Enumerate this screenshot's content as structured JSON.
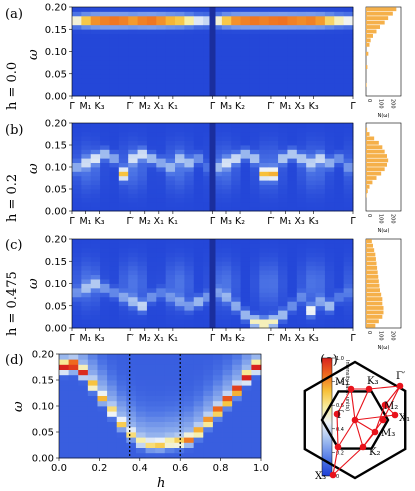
{
  "panel_labels": [
    "(a)",
    "(b)",
    "(c)",
    "(d)",
    "(e)"
  ],
  "h_labels": [
    "h = 0.0",
    "h = 0.2",
    "h = 0.475"
  ],
  "omega_label": "ω",
  "h_axis_label": "h",
  "dos_label": "N(ω)",
  "colorbar_label": "Intensity (arb. units)",
  "colors": {
    "colormap": [
      "#1d3fd6",
      "#4f77e6",
      "#9fbcef",
      "#eef3f8",
      "#f8eea0",
      "#f7c13a",
      "#ee6a1f",
      "#d8221d"
    ],
    "histogram": "#f5b04a",
    "bz_lines": "#e8121b",
    "bz_points": "#e8121b"
  },
  "path_labels": [
    "Γ",
    "M₁",
    "K₃",
    "Γ′",
    "M₂",
    "X₁",
    "K₁",
    "Γ",
    "M₃",
    "K₂",
    "Γ′",
    "M₁",
    "X₃",
    "K₃",
    "Γ"
  ],
  "dos_ticks": [
    "0",
    "100",
    "200"
  ],
  "bz_labels": [
    "M₁",
    "K₃",
    "Γ′",
    "M₂",
    "X₁",
    "Γ",
    "M₃",
    "K₂",
    "X₃"
  ],
  "chart_data": [
    {
      "type": "heatmap",
      "panel": "(a)",
      "h": 0.0,
      "x_ticklabels": [
        "Γ",
        "M₁",
        "K₃",
        "Γ′",
        "M₂",
        "X₁",
        "K₁",
        "Γ",
        "M₃",
        "K₂",
        "Γ′",
        "M₁",
        "X₃",
        "K₃",
        "Γ"
      ],
      "ylabel": "ω",
      "ylim": [
        0.0,
        0.2
      ],
      "yticks": [
        "0.00",
        "0.05",
        "0.10",
        "0.15",
        "0.20"
      ],
      "band_omega": [
        0.17,
        0.17,
        0.17,
        0.17,
        0.17,
        0.17,
        0.17,
        0.17,
        0.17,
        0.17,
        0.17,
        0.17,
        0.17,
        0.17,
        0.17,
        0.17,
        0.17,
        0.17,
        0.17,
        0.17,
        0.17,
        0.17,
        0.17,
        0.17,
        0.17,
        0.17,
        0.17,
        0.17,
        0.17,
        0.17
      ],
      "band_intensity": [
        0.55,
        0.8,
        0.92,
        0.95,
        0.97,
        0.95,
        0.9,
        0.95,
        0.97,
        0.92,
        0.85,
        0.8,
        0.65,
        0.45,
        0.4,
        0.55,
        0.8,
        0.92,
        0.95,
        0.97,
        0.95,
        0.97,
        0.98,
        0.95,
        0.93,
        0.95,
        0.9,
        0.75,
        0.6,
        0.5
      ]
    },
    {
      "type": "heatmap",
      "panel": "(b)",
      "h": 0.2,
      "x_ticklabels": [
        "Γ",
        "M₁",
        "K₃",
        "Γ′",
        "M₂",
        "X₁",
        "K₁",
        "Γ",
        "M₃",
        "K₂",
        "Γ′",
        "M₁",
        "X₃",
        "K₃",
        "Γ"
      ],
      "ylabel": "ω",
      "ylim": [
        0.0,
        0.2
      ],
      "yticks": [
        "0.00",
        "0.05",
        "0.10",
        "0.15",
        "0.20"
      ],
      "band_omega": [
        0.1,
        0.11,
        0.12,
        0.13,
        0.12,
        0.085,
        0.12,
        0.13,
        0.12,
        0.11,
        0.1,
        0.12,
        0.11,
        0.12,
        0.1,
        0.1,
        0.11,
        0.12,
        0.13,
        0.12,
        0.085,
        0.085,
        0.12,
        0.13,
        0.12,
        0.11,
        0.12,
        0.11,
        0.12,
        0.1
      ],
      "band_intensity": [
        0.2,
        0.28,
        0.35,
        0.3,
        0.25,
        0.62,
        0.3,
        0.35,
        0.3,
        0.25,
        0.2,
        0.22,
        0.25,
        0.2,
        0.1,
        0.2,
        0.3,
        0.35,
        0.3,
        0.3,
        0.6,
        0.62,
        0.3,
        0.35,
        0.3,
        0.25,
        0.3,
        0.25,
        0.2,
        0.15
      ]
    },
    {
      "type": "heatmap",
      "panel": "(c)",
      "h": 0.475,
      "x_ticklabels": [
        "Γ",
        "M₁",
        "K₃",
        "Γ′",
        "M₂",
        "X₁",
        "K₁",
        "Γ",
        "M₃",
        "K₂",
        "Γ′",
        "M₁",
        "X₃",
        "K₃",
        "Γ"
      ],
      "ylabel": "ω",
      "ylim": [
        0.0,
        0.2
      ],
      "yticks": [
        "0.00",
        "0.05",
        "0.10",
        "0.15",
        "0.20"
      ],
      "band_omega": [
        0.08,
        0.09,
        0.1,
        0.09,
        0.08,
        0.07,
        0.06,
        0.05,
        0.07,
        0.08,
        0.07,
        0.06,
        0.05,
        0.06,
        0.07,
        0.08,
        0.07,
        0.05,
        0.03,
        0.015,
        0.01,
        0.015,
        0.03,
        0.05,
        0.07,
        0.04,
        0.06,
        0.05,
        0.07,
        0.08
      ],
      "band_intensity": [
        0.15,
        0.2,
        0.25,
        0.2,
        0.18,
        0.2,
        0.25,
        0.35,
        0.2,
        0.15,
        0.15,
        0.18,
        0.2,
        0.3,
        0.2,
        0.15,
        0.2,
        0.25,
        0.3,
        0.5,
        0.6,
        0.5,
        0.3,
        0.2,
        0.15,
        0.45,
        0.2,
        0.3,
        0.15,
        0.1
      ]
    },
    {
      "type": "heatmap",
      "panel": "(d)",
      "xlabel": "h",
      "ylabel": "ω",
      "xlim": [
        0.0,
        1.0
      ],
      "ylim": [
        0.0,
        0.2
      ],
      "xticks": [
        "0.0",
        "0.2",
        "0.4",
        "0.6",
        "0.8",
        "1.0"
      ],
      "yticks": [
        "0.00",
        "0.05",
        "0.10",
        "0.15",
        "0.20"
      ],
      "colorbar_ticks": [
        "0",
        "0.2",
        "0.4",
        "0.6",
        "0.8",
        "1.0"
      ],
      "colorbar_label": "Intensity (arb. units)",
      "vertical_dashed_lines_h": [
        0.35,
        0.6
      ],
      "h_columns": [
        0.0,
        0.05,
        0.1,
        0.15,
        0.2,
        0.25,
        0.3,
        0.35,
        0.4,
        0.45,
        0.5,
        0.55,
        0.6,
        0.65,
        0.7,
        0.75,
        0.8,
        0.85,
        0.9,
        0.95,
        1.0
      ],
      "peak_omega": [
        0.175,
        0.178,
        0.165,
        0.14,
        0.115,
        0.09,
        0.065,
        0.045,
        0.03,
        0.025,
        0.025,
        0.028,
        0.03,
        0.035,
        0.05,
        0.07,
        0.09,
        0.11,
        0.13,
        0.155,
        0.175
      ],
      "peak_intensity": [
        0.85,
        0.95,
        0.7,
        0.55,
        0.45,
        0.45,
        0.4,
        0.35,
        0.35,
        0.35,
        0.4,
        0.45,
        0.5,
        0.55,
        0.6,
        0.65,
        0.75,
        0.8,
        0.85,
        0.85,
        0.8
      ]
    },
    {
      "type": "bar",
      "panel": "(a)",
      "orientation": "horizontal",
      "xlabel": "N(ω)",
      "xlim": [
        0,
        300
      ],
      "ylim": [
        0.0,
        0.2
      ],
      "bins_omega_mid": [
        0.005,
        0.015,
        0.025,
        0.035,
        0.045,
        0.055,
        0.065,
        0.075,
        0.085,
        0.095,
        0.105,
        0.115,
        0.125,
        0.135,
        0.145,
        0.155,
        0.165,
        0.175,
        0.185,
        0.195
      ],
      "values": [
        0,
        0,
        5,
        0,
        0,
        0,
        12,
        0,
        0,
        20,
        0,
        30,
        40,
        60,
        90,
        120,
        160,
        190,
        230,
        260
      ]
    },
    {
      "type": "bar",
      "panel": "(b)",
      "orientation": "horizontal",
      "xlabel": "N(ω)",
      "xlim": [
        0,
        300
      ],
      "ylim": [
        0.0,
        0.2
      ],
      "bins_omega_mid": [
        0.005,
        0.015,
        0.025,
        0.035,
        0.045,
        0.055,
        0.065,
        0.075,
        0.085,
        0.095,
        0.105,
        0.115,
        0.125,
        0.135,
        0.145,
        0.155,
        0.165,
        0.175,
        0.185,
        0.195
      ],
      "values": [
        0,
        0,
        0,
        5,
        15,
        30,
        55,
        90,
        130,
        160,
        180,
        190,
        180,
        160,
        140,
        110,
        70,
        30,
        10,
        0
      ]
    },
    {
      "type": "bar",
      "panel": "(c)",
      "orientation": "horizontal",
      "xlabel": "N(ω)",
      "xlim": [
        0,
        300
      ],
      "ylim": [
        0.0,
        0.2
      ],
      "bins_omega_mid": [
        0.005,
        0.015,
        0.025,
        0.035,
        0.045,
        0.055,
        0.065,
        0.075,
        0.085,
        0.095,
        0.105,
        0.115,
        0.125,
        0.135,
        0.145,
        0.155,
        0.165,
        0.175,
        0.185,
        0.195
      ],
      "values": [
        80,
        110,
        140,
        150,
        150,
        140,
        140,
        130,
        120,
        115,
        110,
        105,
        100,
        95,
        90,
        85,
        80,
        70,
        60,
        50
      ]
    }
  ]
}
